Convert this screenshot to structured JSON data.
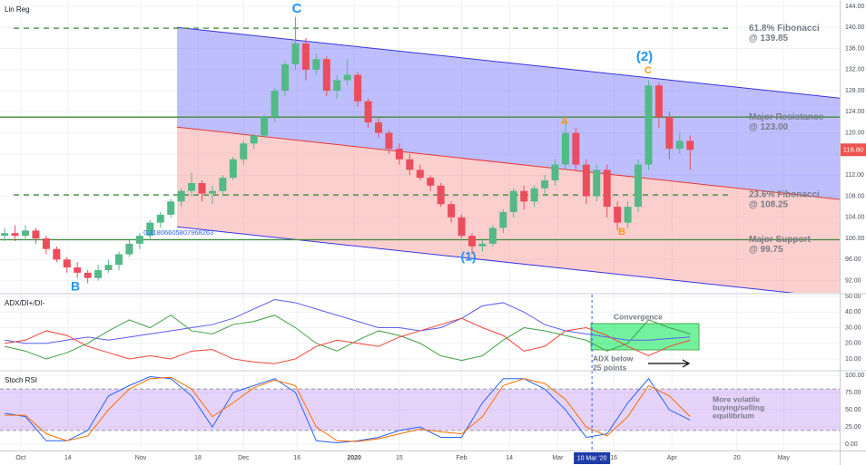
{
  "chart_data": [
    {
      "type": "candlestick",
      "title": "Lin Reg",
      "up_color": "#53b987",
      "down_color": "#eb4d5c",
      "xlim": [
        -0.9,
        160.8
      ],
      "ylim": [
        89.7,
        145.2
      ],
      "yticks": [
        {
          "value": 92,
          "label": "92.00"
        },
        {
          "value": 96,
          "label": "96.00"
        },
        {
          "value": 100,
          "label": "100.00"
        },
        {
          "value": 104,
          "label": "104.00"
        },
        {
          "value": 108,
          "label": "108.00"
        },
        {
          "value": 112,
          "label": "112.00"
        },
        {
          "value": 116,
          "label": "116.00"
        },
        {
          "value": 120,
          "label": "120.00"
        },
        {
          "value": 124,
          "label": "124.00"
        },
        {
          "value": 128,
          "label": "128.00"
        },
        {
          "value": 132,
          "label": "132.00"
        },
        {
          "value": 136,
          "label": "136.00"
        },
        {
          "value": 140,
          "label": "140.00"
        },
        {
          "value": 144,
          "label": "144.00"
        }
      ],
      "x": [
        0,
        2,
        4,
        6,
        8,
        10,
        12,
        14,
        16,
        18,
        20,
        22,
        24,
        26,
        28,
        30,
        32,
        34,
        36,
        38,
        40,
        42,
        44,
        46,
        48,
        50,
        52,
        54,
        56,
        58,
        60,
        62,
        64,
        66,
        68,
        70,
        72,
        74,
        76,
        78,
        80,
        82,
        84,
        86,
        88,
        90,
        92,
        94,
        96,
        98,
        100,
        102,
        104,
        106,
        108,
        110,
        112,
        114,
        116,
        118,
        120,
        122,
        124,
        126,
        128,
        130,
        132
      ],
      "open": [
        100.5,
        101,
        100.5,
        101.5,
        100,
        98,
        96,
        94.5,
        93.5,
        92.5,
        94,
        95,
        97,
        99,
        100.5,
        103,
        104.5,
        107,
        109,
        110.5,
        108.5,
        109,
        111.5,
        115,
        118,
        119.5,
        123,
        128,
        133,
        137,
        132,
        134,
        128,
        130,
        131,
        126,
        122,
        120,
        117,
        115,
        113,
        111.5,
        110,
        106.5,
        104,
        100.5,
        98.5,
        99,
        102,
        105,
        109,
        107,
        109.5,
        111,
        114,
        120,
        114,
        108,
        113,
        106,
        103,
        106,
        114,
        129,
        123,
        117,
        118.5
      ],
      "high": [
        102,
        102.5,
        102.5,
        102,
        100.5,
        98.5,
        96.5,
        95.5,
        94,
        95,
        96,
        97.5,
        100,
        101,
        103.5,
        105,
        107.5,
        109.5,
        112.5,
        111,
        110,
        112,
        115.5,
        118.5,
        120,
        123.5,
        128.5,
        133.5,
        142,
        138,
        135,
        134.5,
        131,
        134,
        131.5,
        126.5,
        123,
        120.5,
        118,
        116,
        114,
        112,
        110.5,
        107,
        104.5,
        101,
        100,
        102.5,
        105.5,
        109.5,
        110,
        110,
        112,
        115,
        122.5,
        121,
        115,
        114,
        114,
        107,
        107,
        115,
        130,
        129.5,
        124,
        120,
        119.5
      ],
      "low": [
        99.5,
        99.5,
        100,
        99,
        97,
        95.5,
        93.5,
        92.5,
        91.5,
        92,
        93.5,
        94,
        96.5,
        98,
        100,
        102,
        104,
        106,
        108,
        107,
        106.5,
        108,
        111,
        114,
        117,
        119,
        122,
        127,
        132,
        130,
        131,
        127,
        126.5,
        129,
        125,
        121,
        119,
        116,
        114,
        112,
        111,
        109,
        106,
        103,
        100,
        97,
        97.5,
        98.5,
        101,
        104,
        105.5,
        106,
        108,
        110,
        113,
        113,
        106.5,
        107,
        104,
        101.5,
        102,
        105,
        113,
        121,
        115,
        116,
        113
      ],
      "close": [
        101,
        100.5,
        101.5,
        100,
        98,
        96,
        94.5,
        93.5,
        92.5,
        94,
        95,
        97,
        99,
        100.5,
        103,
        104.5,
        107,
        109,
        110.5,
        108.5,
        109,
        111.5,
        115,
        118,
        119.5,
        123,
        128,
        133,
        137,
        132,
        134,
        128,
        130,
        131,
        126,
        122,
        120,
        117,
        115,
        113,
        111.5,
        110,
        106.5,
        104,
        100.5,
        98.5,
        99,
        102,
        105,
        109,
        107,
        109.5,
        111,
        114,
        120,
        114,
        108,
        113,
        106,
        103,
        106,
        114,
        129,
        123,
        117,
        118.5,
        116.8
      ],
      "channel": {
        "x": [
          33.2,
          160.8
        ],
        "upper": [
          140,
          126.6
        ],
        "middle": [
          121.1,
          107.4
        ],
        "lower": [
          102.2,
          88.7
        ],
        "label": "0.31806605807968263"
      },
      "levels": [
        {
          "name": "61.8% Fibonacci",
          "label": "@ 139.85",
          "value": 139.85,
          "style": "dashed"
        },
        {
          "name": "Major Resistance",
          "label": "@ 123.00",
          "value": 123,
          "style": "solid"
        },
        {
          "name": "23.6% Fibonacci",
          "label": "@ 108.25",
          "value": 108.25,
          "style": "dashed"
        },
        {
          "name": "Major Support",
          "label": "@ 99.75",
          "value": 99.75,
          "style": "solid"
        }
      ],
      "level_color": "#3f8a3a",
      "annotations": [
        {
          "text": "C",
          "color": "#2196f3"
        },
        {
          "text": "B",
          "color": "#2196f3"
        },
        {
          "text": "(1)",
          "color": "#2196f3"
        },
        {
          "text": "(2)",
          "color": "#2196f3"
        },
        {
          "text": "A",
          "color": "#ff9800"
        },
        {
          "text": "B",
          "color": "#ff9800"
        },
        {
          "text": "C",
          "color": "#ff9800"
        }
      ],
      "last_price": {
        "value": 116.8,
        "label": "116.80"
      }
    },
    {
      "type": "line",
      "title": "ADX/DI+/DI-",
      "xlim": [
        -0.9,
        160.8
      ],
      "ylim": [
        3.0,
        51.2
      ],
      "yticks": [
        {
          "value": 10,
          "label": "10.00"
        },
        {
          "value": 20,
          "label": "20.00"
        },
        {
          "value": 30,
          "label": "30.00"
        },
        {
          "value": 40,
          "label": "40.00"
        },
        {
          "value": 50,
          "label": "50.00"
        }
      ],
      "x": [
        0,
        4,
        8,
        12,
        16,
        20,
        24,
        28,
        32,
        36,
        40,
        44,
        48,
        52,
        56,
        60,
        64,
        68,
        72,
        76,
        80,
        84,
        88,
        92,
        96,
        100,
        104,
        108,
        112,
        116,
        120,
        124,
        128,
        132
      ],
      "series": [
        {
          "color": "#5c5cf0",
          "values": [
            22,
            20,
            20,
            22,
            24,
            22,
            24,
            26,
            28,
            30,
            32,
            36,
            42,
            48,
            46,
            42,
            38,
            34,
            30,
            30,
            28,
            30,
            36,
            44,
            46,
            40,
            32,
            28,
            26,
            24,
            22,
            22,
            23,
            24
          ]
        },
        {
          "color": "#43a047",
          "values": [
            18,
            15,
            10,
            14,
            20,
            28,
            35,
            30,
            38,
            28,
            26,
            32,
            34,
            38,
            30,
            20,
            15,
            22,
            28,
            25,
            20,
            12,
            9,
            12,
            22,
            30,
            28,
            25,
            22,
            15,
            20,
            35,
            30,
            26
          ]
        },
        {
          "color": "#f44336",
          "values": [
            20,
            22,
            28,
            25,
            18,
            14,
            10,
            12,
            10,
            15,
            16,
            10,
            8,
            7,
            10,
            18,
            22,
            20,
            18,
            24,
            28,
            32,
            36,
            30,
            25,
            15,
            18,
            28,
            30,
            25,
            18,
            12,
            18,
            22
          ]
        }
      ],
      "box_label": "Convergence",
      "note": [
        "ADX below",
        "25 points"
      ]
    },
    {
      "type": "line",
      "title": "Stoch RSI",
      "xlim": [
        -0.9,
        160.8
      ],
      "ylim": [
        -9.1,
        105.2
      ],
      "yticks": [
        {
          "value": 0,
          "label": "0.00"
        },
        {
          "value": 25,
          "label": "25.00"
        },
        {
          "value": 50,
          "label": "50.00"
        },
        {
          "value": 75,
          "label": "75.00"
        },
        {
          "value": 100,
          "label": "100.00"
        }
      ],
      "x": [
        0,
        4,
        8,
        12,
        16,
        20,
        24,
        28,
        32,
        36,
        40,
        44,
        48,
        52,
        56,
        60,
        64,
        68,
        72,
        76,
        80,
        84,
        88,
        92,
        96,
        100,
        104,
        108,
        112,
        116,
        120,
        124,
        128,
        132
      ],
      "series": [
        {
          "color": "#2962ff",
          "values": [
            45,
            40,
            5,
            5,
            20,
            70,
            85,
            98,
            95,
            70,
            25,
            75,
            85,
            95,
            75,
            5,
            2,
            5,
            10,
            20,
            25,
            10,
            10,
            60,
            95,
            95,
            80,
            50,
            10,
            15,
            60,
            95,
            50,
            35
          ]
        },
        {
          "color": "#ff6d00",
          "values": [
            42,
            42,
            15,
            5,
            12,
            50,
            80,
            95,
            97,
            80,
            40,
            60,
            82,
            93,
            85,
            25,
            5,
            4,
            8,
            15,
            22,
            18,
            15,
            40,
            85,
            95,
            88,
            65,
            25,
            12,
            40,
            85,
            70,
            40
          ]
        }
      ],
      "bands": {
        "upper": 80,
        "lower": 20
      },
      "note": [
        "More volatile",
        "buying/selling",
        "equilibrium"
      ],
      "marker": {
        "x": 113.1,
        "label": "10 Mar '20"
      },
      "xticks": [
        {
          "value": 3.1,
          "label": "Oct"
        },
        {
          "value": 12.2,
          "label": "14"
        },
        {
          "value": 26.2,
          "label": "Nov"
        },
        {
          "value": 37.2,
          "label": "18"
        },
        {
          "value": 46,
          "label": "Dec"
        },
        {
          "value": 56.3,
          "label": "16"
        },
        {
          "value": 67.3,
          "label": "2020"
        },
        {
          "value": 76,
          "label": "15"
        },
        {
          "value": 88,
          "label": "Feb"
        },
        {
          "value": 97.2,
          "label": "14"
        },
        {
          "value": 106.5,
          "label": "Mar"
        },
        {
          "value": 117.3,
          "label": "16"
        },
        {
          "value": 128.5,
          "label": "Apr"
        },
        {
          "value": 141,
          "label": "20"
        },
        {
          "value": 150,
          "label": "May"
        }
      ]
    }
  ]
}
